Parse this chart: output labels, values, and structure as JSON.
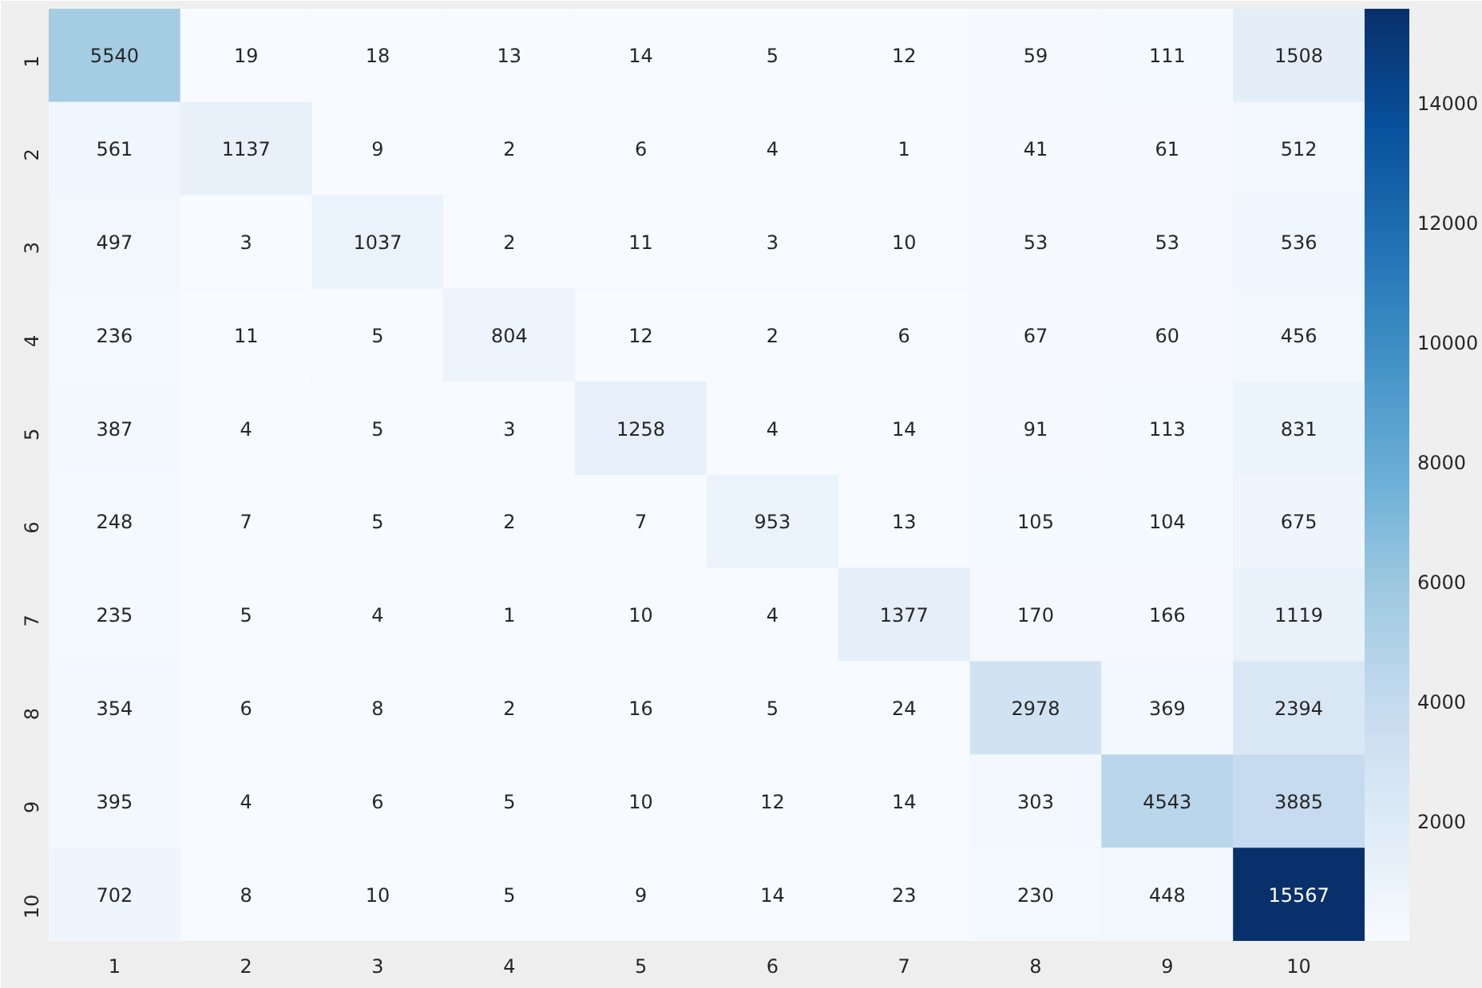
{
  "chart_data": {
    "type": "heatmap",
    "categories": [
      "1",
      "2",
      "3",
      "4",
      "5",
      "6",
      "7",
      "8",
      "9",
      "10"
    ],
    "y_categories": [
      "1",
      "2",
      "3",
      "4",
      "5",
      "6",
      "7",
      "8",
      "9",
      "10"
    ],
    "cells": [
      [
        5540,
        19,
        18,
        13,
        14,
        5,
        12,
        59,
        111,
        1508
      ],
      [
        561,
        1137,
        9,
        2,
        6,
        4,
        1,
        41,
        61,
        512
      ],
      [
        497,
        3,
        1037,
        2,
        11,
        3,
        10,
        53,
        53,
        536
      ],
      [
        236,
        11,
        5,
        804,
        12,
        2,
        6,
        67,
        60,
        456
      ],
      [
        387,
        4,
        5,
        3,
        1258,
        4,
        14,
        91,
        113,
        831
      ],
      [
        248,
        7,
        5,
        2,
        7,
        953,
        13,
        105,
        104,
        675
      ],
      [
        235,
        5,
        4,
        1,
        10,
        4,
        1377,
        170,
        166,
        1119
      ],
      [
        354,
        6,
        8,
        2,
        16,
        5,
        24,
        2978,
        369,
        2394
      ],
      [
        395,
        4,
        6,
        5,
        10,
        12,
        14,
        303,
        4543,
        3885
      ],
      [
        702,
        8,
        10,
        5,
        9,
        14,
        23,
        230,
        448,
        15567
      ]
    ],
    "data_labels": true,
    "clim": [
      1,
      15567
    ],
    "cticks": [
      2000,
      4000,
      6000,
      8000,
      10000,
      12000,
      14000
    ]
  }
}
